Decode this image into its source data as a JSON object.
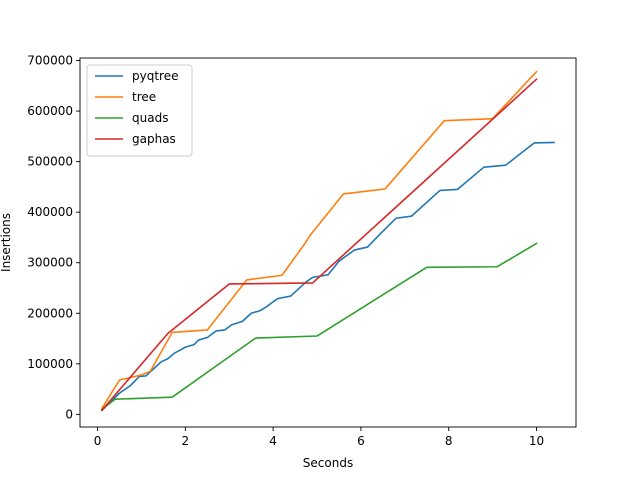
{
  "chart_data": {
    "type": "line",
    "title": "",
    "xlabel": "Seconds",
    "ylabel": "Insertions",
    "xlim": [
      -0.4,
      10.9
    ],
    "ylim": [
      -25000,
      705000
    ],
    "xticks": [
      0,
      2,
      4,
      6,
      8,
      10
    ],
    "yticks": [
      0,
      100000,
      200000,
      300000,
      400000,
      500000,
      600000,
      700000
    ],
    "xtick_labels": [
      "0",
      "2",
      "4",
      "6",
      "8",
      "10"
    ],
    "ytick_labels": [
      "0",
      "100000",
      "200000",
      "300000",
      "400000",
      "500000",
      "600000",
      "700000"
    ],
    "grid": false,
    "legend": {
      "placement": "upper-left"
    },
    "series": [
      {
        "name": "pyqtree",
        "color": "#1f77b4",
        "points": [
          [
            0.1,
            8000
          ],
          [
            0.3,
            25000
          ],
          [
            0.5,
            42000
          ],
          [
            0.75,
            57000
          ],
          [
            0.95,
            75000
          ],
          [
            1.1,
            76000
          ],
          [
            1.3,
            92000
          ],
          [
            1.45,
            104000
          ],
          [
            1.6,
            110000
          ],
          [
            1.75,
            121000
          ],
          [
            1.9,
            128000
          ],
          [
            2.0,
            133000
          ],
          [
            2.2,
            138000
          ],
          [
            2.3,
            147000
          ],
          [
            2.5,
            152000
          ],
          [
            2.7,
            165000
          ],
          [
            2.9,
            167000
          ],
          [
            3.05,
            177000
          ],
          [
            3.3,
            184000
          ],
          [
            3.5,
            200000
          ],
          [
            3.7,
            205000
          ],
          [
            3.85,
            213000
          ],
          [
            4.1,
            229000
          ],
          [
            4.4,
            234000
          ],
          [
            4.75,
            262000
          ],
          [
            4.9,
            271000
          ],
          [
            5.25,
            276000
          ],
          [
            5.5,
            303000
          ],
          [
            5.85,
            325000
          ],
          [
            6.15,
            331000
          ],
          [
            6.45,
            358000
          ],
          [
            6.8,
            388000
          ],
          [
            7.15,
            392000
          ],
          [
            7.8,
            443000
          ],
          [
            8.2,
            445000
          ],
          [
            8.8,
            489000
          ],
          [
            9.3,
            493000
          ],
          [
            9.95,
            537000
          ],
          [
            10.4,
            538000
          ]
        ]
      },
      {
        "name": "tree",
        "color": "#ff7f0e",
        "points": [
          [
            0.1,
            12000
          ],
          [
            0.5,
            68000
          ],
          [
            1.0,
            78000
          ],
          [
            1.2,
            85000
          ],
          [
            1.7,
            162000
          ],
          [
            2.5,
            167000
          ],
          [
            3.4,
            266000
          ],
          [
            4.2,
            275000
          ],
          [
            4.7,
            335000
          ],
          [
            4.85,
            355000
          ],
          [
            5.6,
            436000
          ],
          [
            6.55,
            446000
          ],
          [
            7.9,
            581000
          ],
          [
            9.0,
            585000
          ],
          [
            10.0,
            678000
          ]
        ]
      },
      {
        "name": "quads",
        "color": "#2ca02c",
        "points": [
          [
            0.1,
            10000
          ],
          [
            0.4,
            30000
          ],
          [
            1.7,
            34000
          ],
          [
            3.6,
            151000
          ],
          [
            5.0,
            155000
          ],
          [
            7.5,
            291000
          ],
          [
            9.1,
            292000
          ],
          [
            10.0,
            338000
          ]
        ]
      },
      {
        "name": "gaphas",
        "color": "#d62728",
        "points": [
          [
            0.1,
            8000
          ],
          [
            1.6,
            160000
          ],
          [
            3.0,
            258000
          ],
          [
            4.9,
            260000
          ],
          [
            10.0,
            663000
          ]
        ]
      }
    ]
  }
}
